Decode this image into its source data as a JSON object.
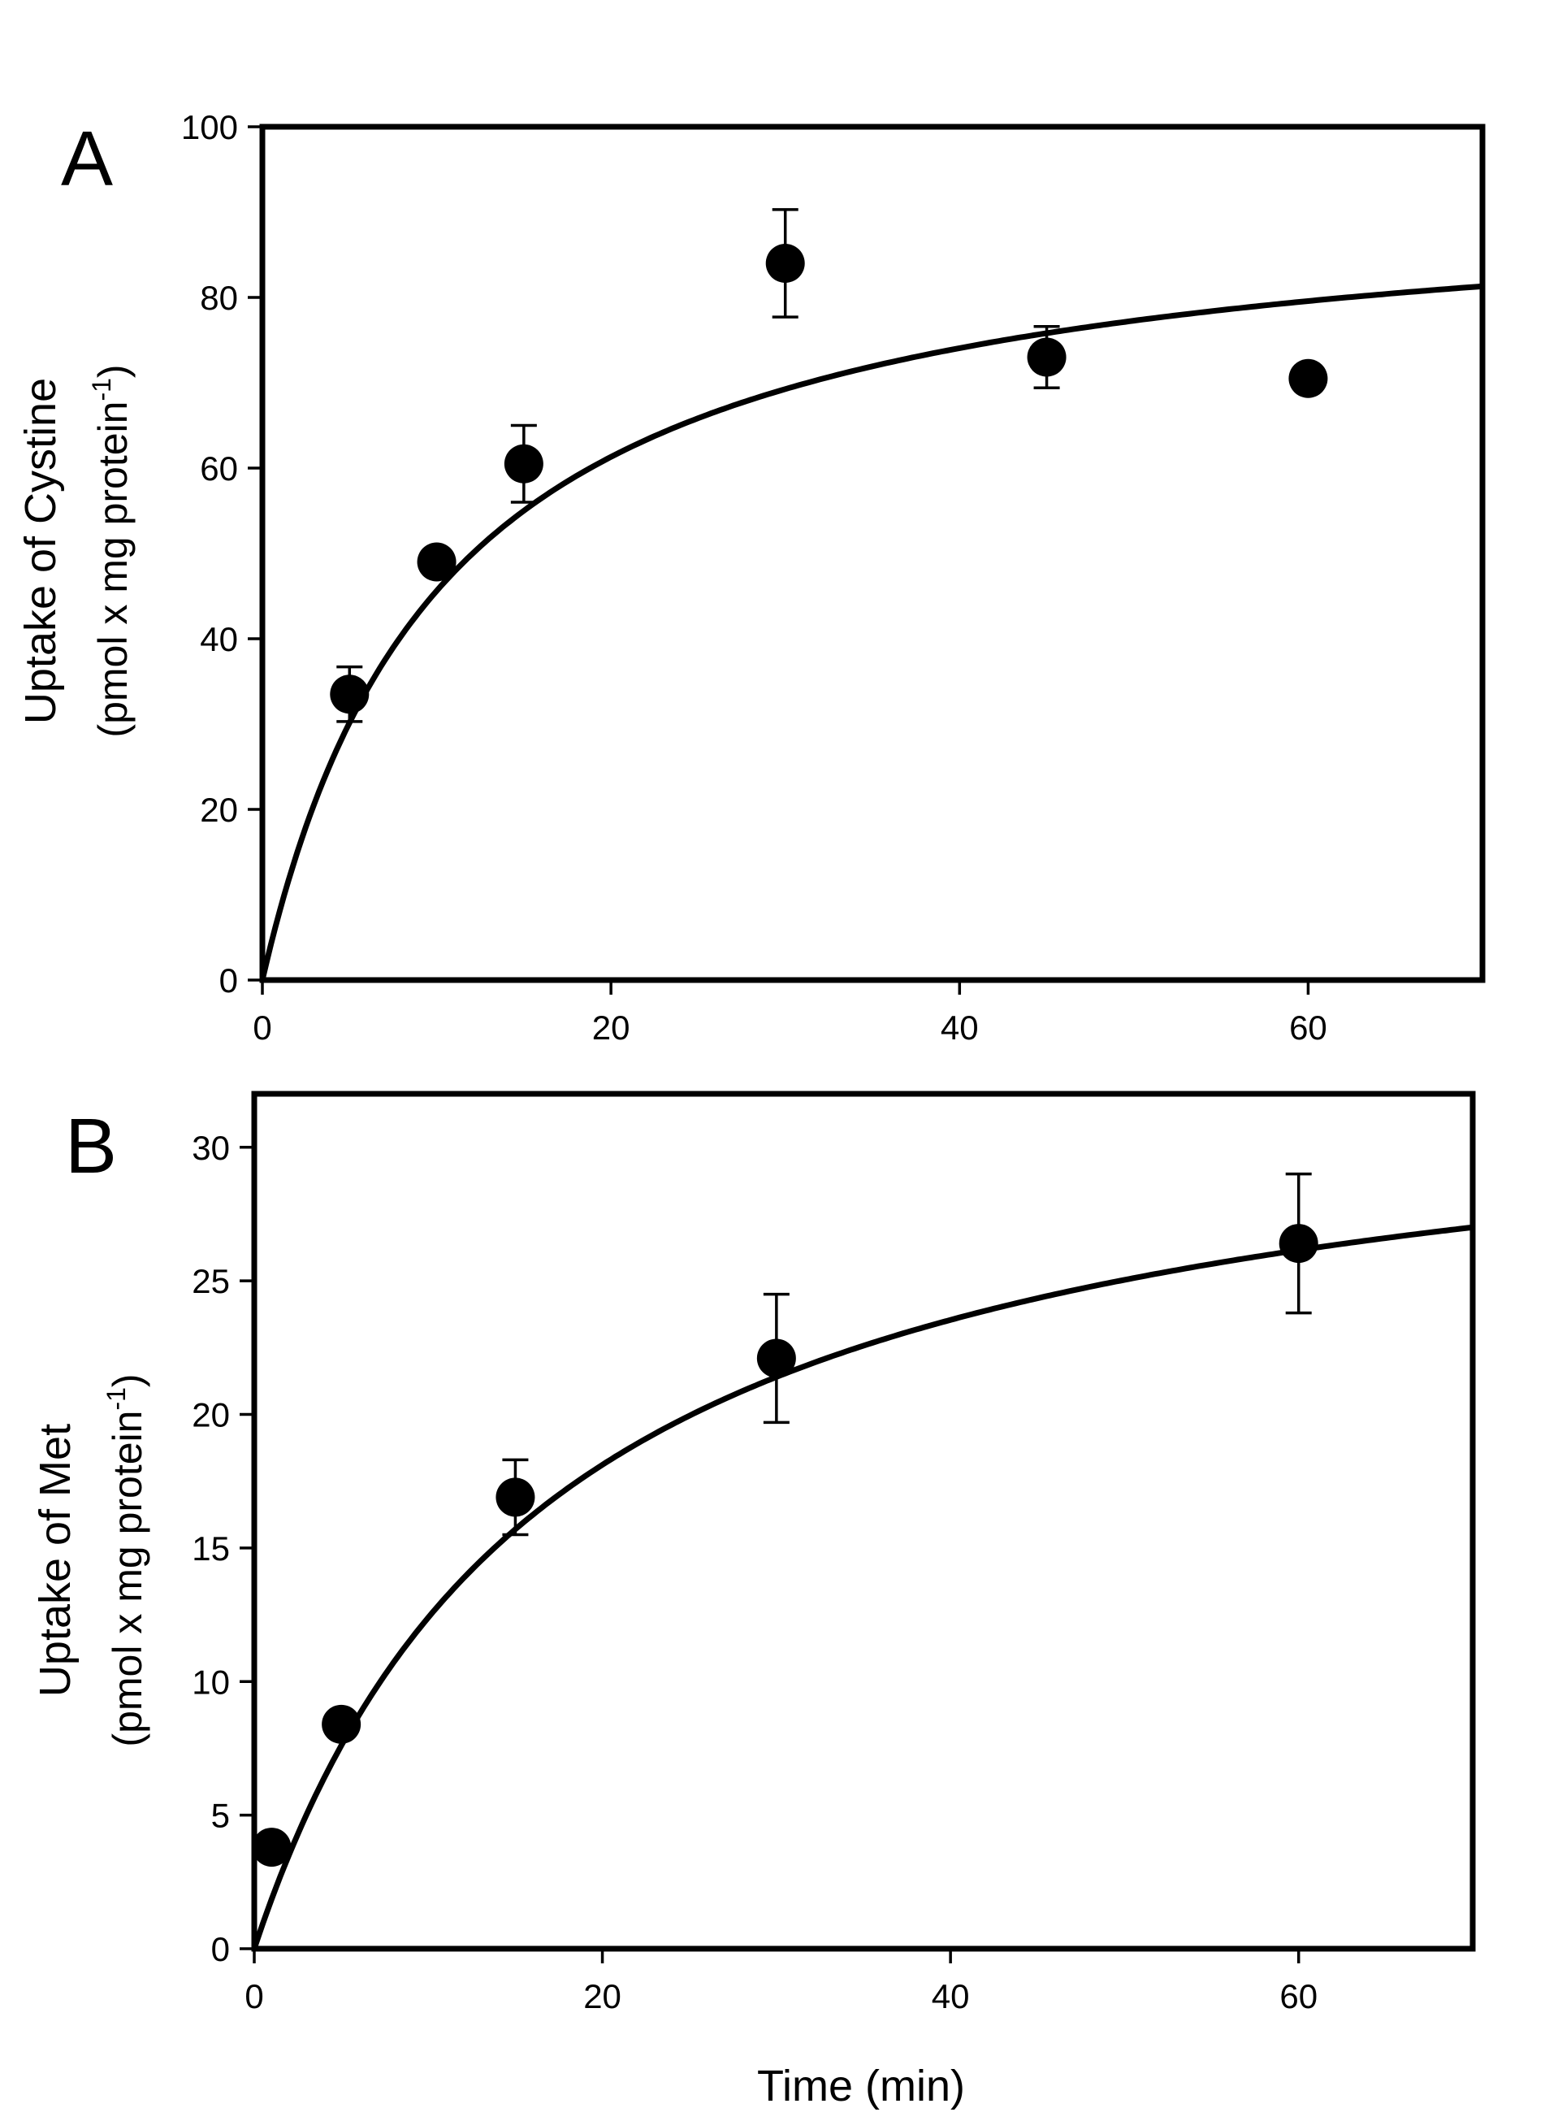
{
  "chart_data": [
    {
      "type": "scatter",
      "panel_label": "A",
      "ylabel": "Uptake of Cystine",
      "ylabel_units": "(pmol x mg protein",
      "ylabel_units_sup": "-1",
      "ylabel_units_close": ")",
      "xlabel": "",
      "xlim": [
        0,
        70
      ],
      "ylim": [
        0,
        100
      ],
      "xticks": [
        0,
        20,
        40,
        60
      ],
      "yticks": [
        0,
        20,
        40,
        60,
        80,
        100
      ],
      "series": [
        {
          "name": "Cystine uptake",
          "x": [
            5,
            10,
            15,
            30,
            45,
            60
          ],
          "y": [
            33.5,
            49,
            60.5,
            84,
            73,
            70.5
          ],
          "error": [
            3.2,
            0,
            4.5,
            6.3,
            3.6,
            0
          ]
        }
      ],
      "fit": {
        "model": "hyperbolic",
        "vmax": 93.5,
        "k": 10.5
      }
    },
    {
      "type": "scatter",
      "panel_label": "B",
      "ylabel": "Uptake of Met",
      "ylabel_units": "(pmol x mg protein",
      "ylabel_units_sup": "-1",
      "ylabel_units_close": ")",
      "xlabel": "Time (min)",
      "xlim": [
        0,
        70
      ],
      "ylim": [
        0,
        32
      ],
      "xticks": [
        0,
        20,
        40,
        60
      ],
      "yticks": [
        0,
        5,
        10,
        15,
        20,
        25,
        30
      ],
      "series": [
        {
          "name": "Met uptake",
          "x": [
            1,
            5,
            15,
            30,
            60
          ],
          "y": [
            3.8,
            8.4,
            16.9,
            22.1,
            26.4
          ],
          "error": [
            0,
            0,
            1.4,
            2.4,
            2.6
          ]
        }
      ],
      "fit": {
        "model": "hyperbolic",
        "vmax": 33.6,
        "k": 17.1
      }
    }
  ]
}
